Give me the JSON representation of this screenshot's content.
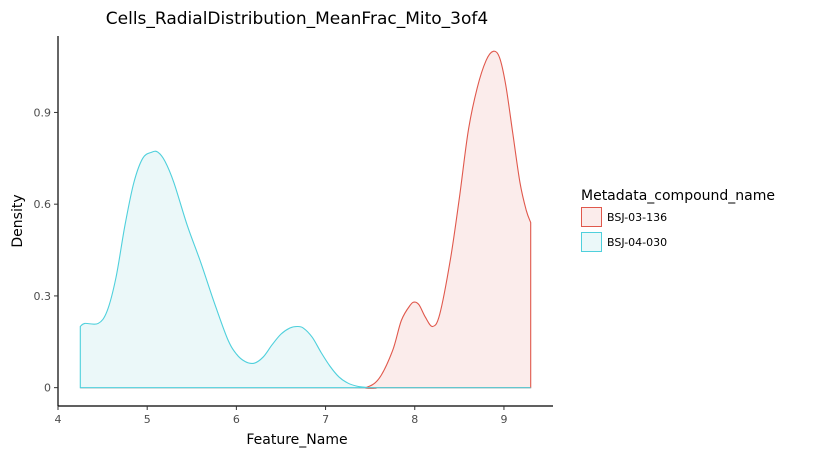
{
  "chart_data": {
    "type": "area",
    "title": "Cells_RadialDistribution_MeanFrac_Mito_3of4",
    "xlabel": "Feature_Name",
    "ylabel": "Density",
    "xlim": [
      4.0,
      9.55
    ],
    "ylim": [
      -0.06,
      1.15
    ],
    "x_ticks": [
      4,
      5,
      6,
      7,
      8,
      9
    ],
    "y_ticks": [
      0,
      0.3,
      0.6,
      0.9
    ],
    "y_tick_labels": [
      "0",
      "0.3",
      "0.6",
      "0.9"
    ],
    "grid": false,
    "legend": {
      "title": "Metadata_compound_name",
      "placement": "right"
    },
    "series": [
      {
        "name": "BSJ-03-136",
        "color": "#e0584c",
        "fill": "#fbeceb",
        "x": [
          4.25,
          7.3,
          7.45,
          7.6,
          7.75,
          7.85,
          7.95,
          8.0,
          8.05,
          8.12,
          8.2,
          8.28,
          8.4,
          8.5,
          8.6,
          8.7,
          8.8,
          8.88,
          8.95,
          9.02,
          9.1,
          9.18,
          9.25,
          9.3
        ],
        "y": [
          0,
          0,
          0.0,
          0.03,
          0.12,
          0.22,
          0.27,
          0.28,
          0.27,
          0.23,
          0.2,
          0.24,
          0.42,
          0.62,
          0.84,
          0.98,
          1.07,
          1.1,
          1.08,
          0.99,
          0.83,
          0.67,
          0.58,
          0.54
        ]
      },
      {
        "name": "BSJ-04-030",
        "color": "#4fd0dc",
        "fill": "#ebf8f9",
        "x": [
          4.25,
          4.3,
          4.45,
          4.55,
          4.65,
          4.75,
          4.85,
          4.95,
          5.05,
          5.12,
          5.2,
          5.3,
          5.45,
          5.6,
          5.75,
          5.9,
          6.0,
          6.1,
          6.2,
          6.3,
          6.4,
          6.5,
          6.6,
          6.68,
          6.75,
          6.85,
          6.95,
          7.05,
          7.15,
          7.25,
          7.35,
          7.45,
          7.55,
          9.3
        ],
        "y": [
          0.2,
          0.21,
          0.21,
          0.25,
          0.36,
          0.53,
          0.67,
          0.75,
          0.77,
          0.77,
          0.74,
          0.67,
          0.53,
          0.41,
          0.28,
          0.16,
          0.11,
          0.085,
          0.08,
          0.1,
          0.14,
          0.175,
          0.195,
          0.2,
          0.195,
          0.165,
          0.115,
          0.07,
          0.035,
          0.015,
          0.005,
          0.001,
          0,
          0
        ]
      }
    ]
  }
}
